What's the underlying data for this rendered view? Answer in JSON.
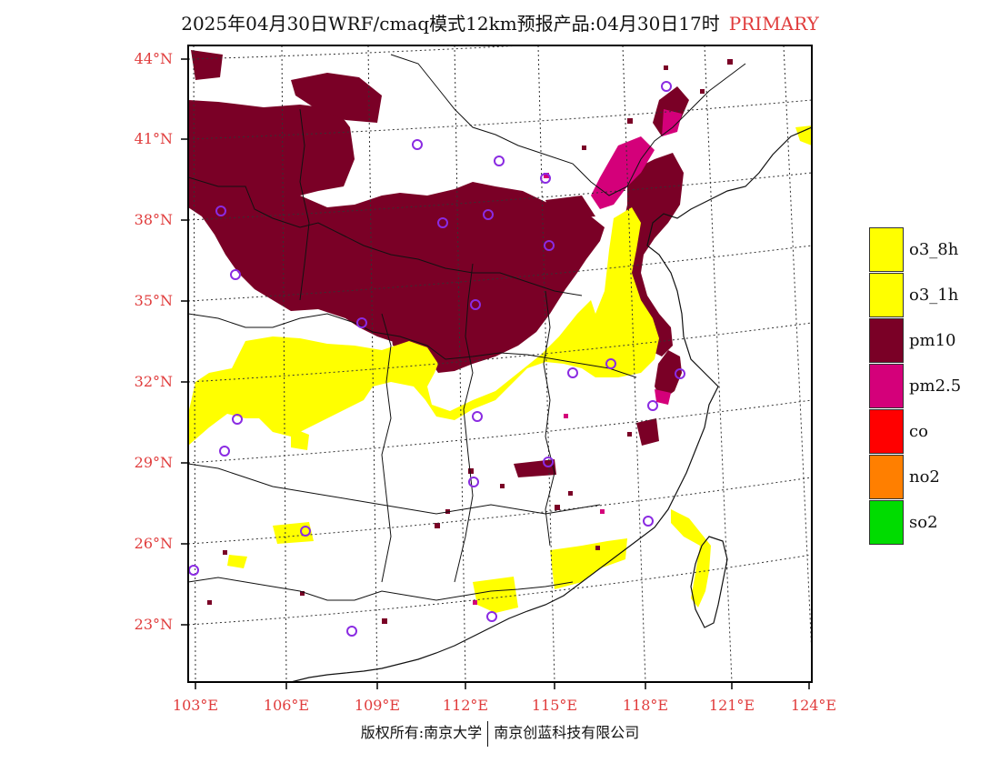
{
  "title": {
    "main": "2025年04月30日WRF/cmaq模式12km预报产品:04月30日17时",
    "tag": "PRIMARY"
  },
  "axes": {
    "lat_labels": [
      "44°N",
      "41°N",
      "38°N",
      "35°N",
      "32°N",
      "29°N",
      "26°N",
      "23°N"
    ],
    "lon_labels": [
      "103°E",
      "106°E",
      "109°E",
      "112°E",
      "115°E",
      "118°E",
      "121°E",
      "124°E"
    ]
  },
  "legend": [
    {
      "label": "o3_8h",
      "color": "#ffff00"
    },
    {
      "label": "o3_1h",
      "color": "#ffff00"
    },
    {
      "label": "pm10",
      "color": "#7a0026"
    },
    {
      "label": "pm2.5",
      "color": "#d4007a"
    },
    {
      "label": "co",
      "color": "#ff0000"
    },
    {
      "label": "no2",
      "color": "#ff7f00"
    },
    {
      "label": "so2",
      "color": "#00dc00"
    }
  ],
  "copyright": {
    "left": "版权所有:南京大学",
    "right": "南京创蓝科技有限公司"
  }
}
